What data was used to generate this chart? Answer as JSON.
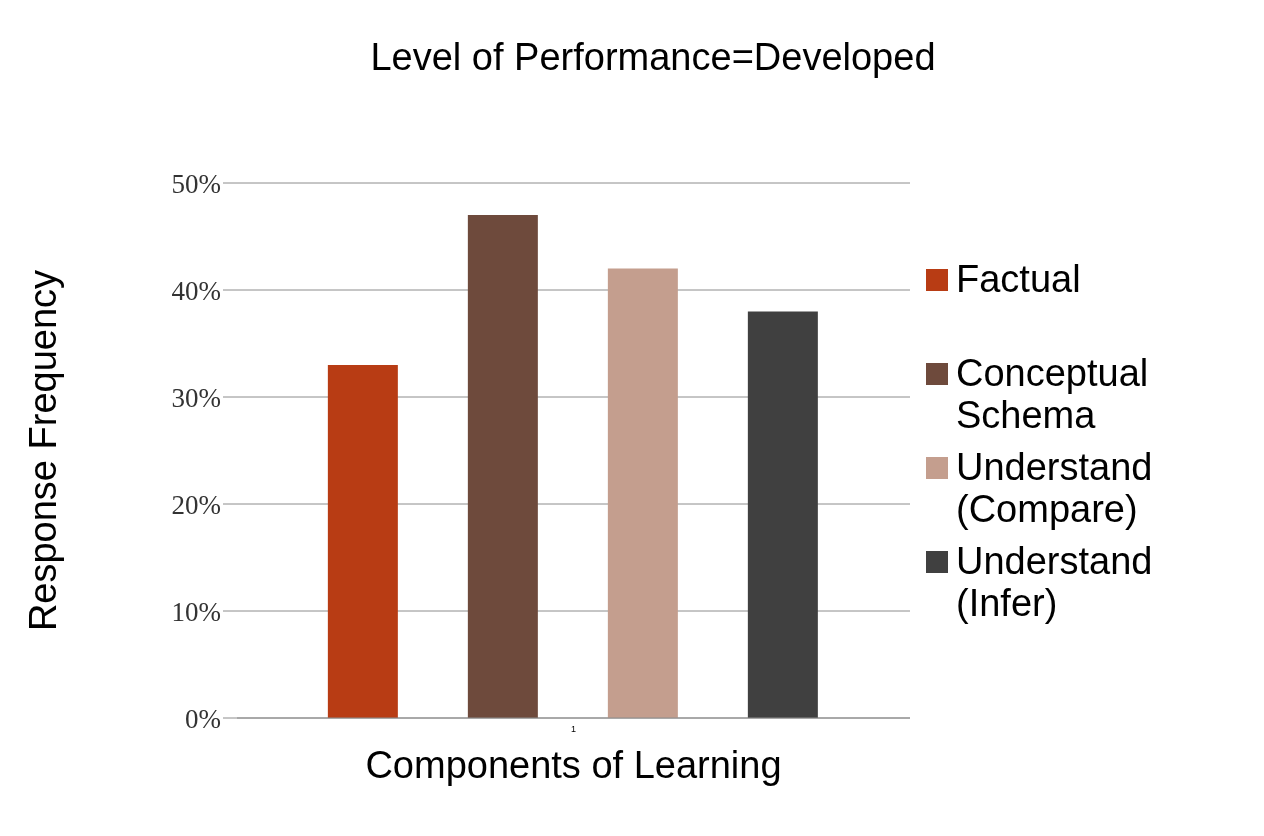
{
  "chart_data": {
    "type": "bar",
    "title": "Level of Performance=Developed",
    "xlabel": "Components of Learning",
    "ylabel": "Response Frequency",
    "categories": [
      "1"
    ],
    "series": [
      {
        "name": "Factual",
        "color": "#b83c14",
        "values": [
          33
        ]
      },
      {
        "name": "Conceptual Schema",
        "color": "#6e4a3c",
        "values": [
          47
        ]
      },
      {
        "name": "Understand (Compare)",
        "color": "#c49e8e",
        "values": [
          42
        ]
      },
      {
        "name": "Understand (Infer)",
        "color": "#404040",
        "values": [
          38
        ]
      }
    ],
    "ylim": [
      0,
      50
    ],
    "yticks": [
      {
        "value": 0,
        "label": "0%"
      },
      {
        "value": 10,
        "label": "10%"
      },
      {
        "value": 20,
        "label": "20%"
      },
      {
        "value": 30,
        "label": "30%"
      },
      {
        "value": 40,
        "label": "40%"
      },
      {
        "value": 50,
        "label": "50%"
      }
    ],
    "grid": "y",
    "legend": "right"
  }
}
